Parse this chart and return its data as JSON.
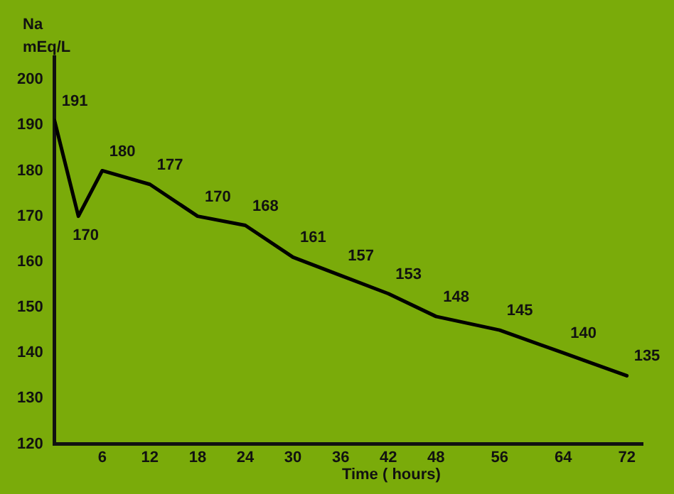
{
  "chart_data": {
    "type": "line",
    "ylabel": "Na\nmEq/L",
    "xlabel": "Time ( hours)",
    "x": [
      0,
      3,
      6,
      12,
      18,
      24,
      30,
      36,
      42,
      48,
      56,
      64,
      72
    ],
    "series": [
      {
        "color": "#000000",
        "values": [
          191,
          170,
          180,
          177,
          170,
          168,
          161,
          157,
          153,
          148,
          145,
          140,
          135
        ]
      }
    ],
    "xlim": [
      0,
      74
    ],
    "xticks": [
      6,
      12,
      18,
      24,
      30,
      36,
      42,
      48,
      56,
      64,
      72
    ],
    "ylim": [
      120,
      205
    ],
    "yticks": [
      120,
      130,
      140,
      150,
      160,
      170,
      180,
      190,
      200
    ],
    "grid": false,
    "legend": false,
    "marker": "none",
    "line_style": "solid",
    "data_labels": true
  }
}
